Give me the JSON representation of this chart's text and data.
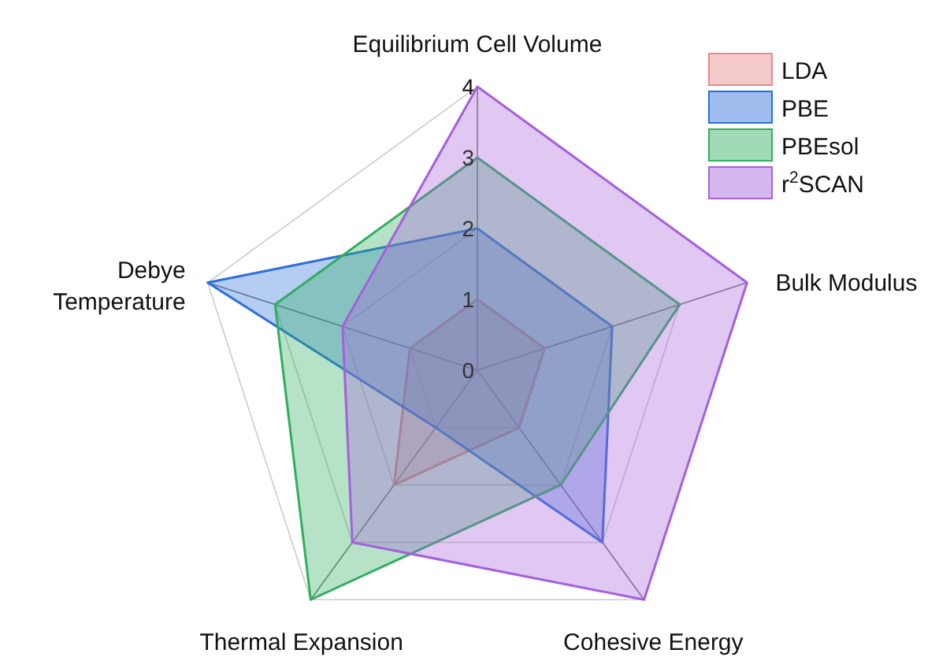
{
  "chart_data": {
    "type": "radar",
    "categories": [
      "Equilibrium Cell Volume",
      "Bulk Modulus",
      "Cohesive Energy",
      "Thermal Expansion",
      "Debye Temperature"
    ],
    "series": [
      {
        "name": "LDA",
        "color": "#e88a8a",
        "values": [
          1,
          1,
          1,
          2,
          1
        ]
      },
      {
        "name": "PBE",
        "color": "#2a6fdc",
        "values": [
          2,
          2,
          3,
          1,
          4
        ]
      },
      {
        "name": "PBEsol",
        "color": "#2fae5f",
        "values": [
          3,
          3,
          2,
          4,
          3
        ]
      },
      {
        "name": "r$^{2}$SCAN",
        "color": "#a560dc",
        "values": [
          4,
          4,
          4,
          3,
          2
        ]
      }
    ],
    "ylim": [
      0,
      4
    ],
    "yticks": [
      0,
      1,
      2,
      3,
      4
    ],
    "grid": true,
    "legend": "top right"
  }
}
